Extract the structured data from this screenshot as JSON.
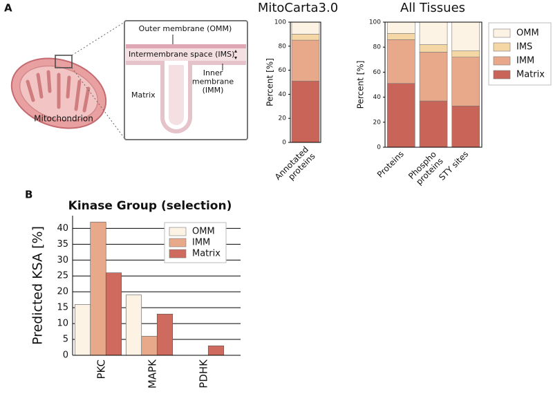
{
  "panels": [
    "A",
    "B"
  ],
  "diagram": {
    "outer_membrane": "Outer membrane (OMM)",
    "intermembrane_space": "Intermembrane space (IMS)",
    "matrix": "Matrix",
    "inner_membrane": "Inner\nmembrane\n(IMM)",
    "organelle": "Mitochondrion"
  },
  "chart_data": [
    {
      "type": "bar",
      "stacked": true,
      "title": "MitoCarta3.0",
      "y_label": "Percent [%]",
      "categories": [
        "Annotated\nproteins"
      ],
      "series": [
        {
          "color": "#c96459",
          "values": [
            51
          ]
        },
        {
          "color": "#e8a98a",
          "values": [
            34
          ]
        },
        {
          "color": "#f5d7a5",
          "values": [
            5
          ]
        },
        {
          "color": "#fdf3e4",
          "values": [
            10
          ]
        }
      ],
      "ylim": [
        0,
        100
      ],
      "yticks": [
        0,
        20,
        40,
        60,
        80,
        100
      ],
      "grid": false,
      "legend": false
    },
    {
      "type": "bar",
      "stacked": true,
      "title": "All Tissues",
      "y_label": "Percent [%]",
      "categories": [
        "Proteins",
        "Phospho\nproteins",
        "STY sites"
      ],
      "series": [
        {
          "name": "Matrix",
          "color": "#c96459",
          "values": [
            51,
            37,
            33
          ]
        },
        {
          "name": "IMM",
          "color": "#e8a98a",
          "values": [
            35,
            39,
            39
          ]
        },
        {
          "name": "IMS",
          "color": "#f5d7a5",
          "values": [
            5,
            6,
            5
          ]
        },
        {
          "name": "OMM",
          "color": "#fdf3e4",
          "values": [
            9,
            18,
            23
          ]
        }
      ],
      "ylim": [
        0,
        100
      ],
      "yticks": [
        0,
        20,
        40,
        60,
        80,
        100
      ],
      "grid": false,
      "legend": "outside right"
    },
    {
      "type": "bar",
      "stacked": false,
      "title": "Kinase Group (selection)",
      "y_label": "Predicted KSA [%]",
      "categories": [
        "PKC",
        "MAPK",
        "PDHK"
      ],
      "series": [
        {
          "name": "OMM",
          "color": "#fdf3e4",
          "values": [
            16,
            19,
            0
          ]
        },
        {
          "name": "IMM",
          "color": "#e8a98a",
          "values": [
            42,
            6,
            0
          ]
        },
        {
          "name": "Matrix",
          "color": "#cf6a5e",
          "values": [
            26,
            13,
            3
          ]
        }
      ],
      "ylim": [
        0,
        44
      ],
      "yticks": [
        0,
        5,
        10,
        15,
        20,
        25,
        30,
        35,
        40
      ],
      "grid": true,
      "legend": "upper right"
    }
  ]
}
